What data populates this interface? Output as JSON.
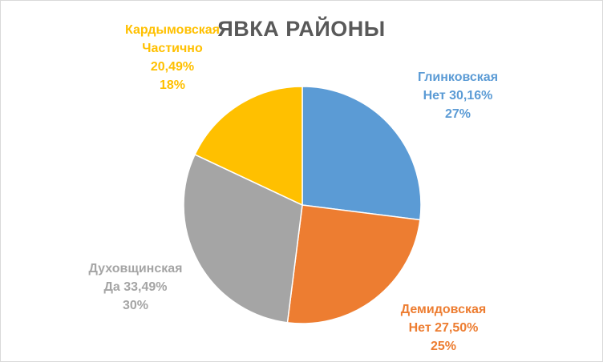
{
  "chart_data": {
    "type": "pie",
    "title": "ЯВКА РАЙОНЫ",
    "slices": [
      {
        "category": "Глинковская",
        "sub": "Нет 30,16%",
        "percent_label": "27%",
        "value": 27,
        "color": "#5b9bd5"
      },
      {
        "category": "Демидовская",
        "sub": "Нет 27,50%",
        "percent_label": "25%",
        "value": 25,
        "color": "#ed7d31"
      },
      {
        "category": "Духовщинская",
        "sub": "Да 33,49%",
        "percent_label": "30%",
        "value": 30,
        "color": "#a5a5a5"
      },
      {
        "category": "Кардымовская",
        "sub": "Частично",
        "sub2": "20,49%",
        "percent_label": "18%",
        "value": 18,
        "color": "#ffc000"
      }
    ],
    "legend": "none",
    "label_placement": "outside"
  }
}
